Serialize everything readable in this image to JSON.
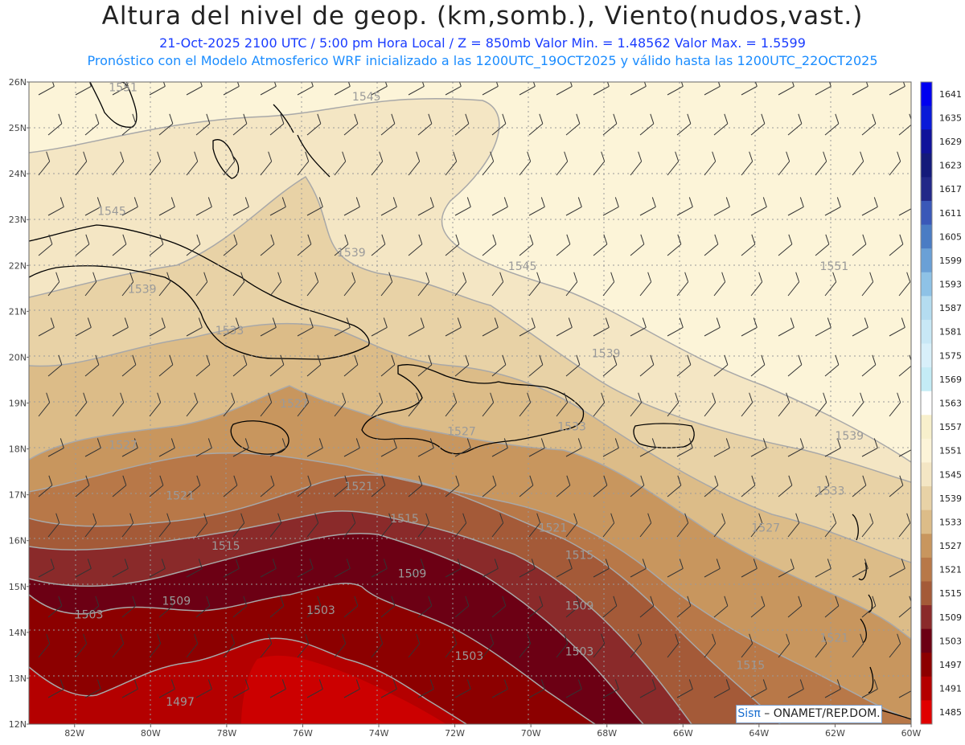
{
  "title": "Altura del nivel de geop. (km,somb.), Viento(nudos,vast.)",
  "subtitle": "21-Oct-2025  2100 UTC / 5:00 pm Hora Local / Z = 850mb      Valor Min. = 1.48562   Valor Max. = 1.5599",
  "model_line": "Pronóstico con el Modelo Atmosferico WRF inicializado a las 1200UTC_19OCT2025 y válido hasta las  1200UTC_22OCT2025",
  "credit": {
    "brand": "Sisπ",
    "rest": " – ONAMET/REP.DOM."
  },
  "axes": {
    "lat_labels": [
      "26N",
      "25N",
      "24N",
      "23N",
      "22N",
      "21N",
      "20N",
      "19N",
      "18N",
      "17N",
      "16N",
      "15N",
      "14N",
      "13N",
      "12N"
    ],
    "lon_labels": [
      "82W",
      "80W",
      "78W",
      "76W",
      "74W",
      "72W",
      "70W",
      "68W",
      "66W",
      "64W",
      "62W",
      "60W"
    ]
  },
  "colorbar": {
    "values": [
      "1641",
      "1635",
      "1629",
      "1623",
      "1617",
      "1611",
      "1605",
      "1599",
      "1593",
      "1587",
      "1581",
      "1575",
      "1569",
      "1563",
      "1557",
      "1551",
      "1545",
      "1539",
      "1533",
      "1527",
      "1521",
      "1515",
      "1509",
      "1503",
      "1497",
      "1491",
      "1485"
    ],
    "colors": [
      "#0000f0",
      "#0a1ad8",
      "#10129a",
      "#141a7a",
      "#222888",
      "#3a58b8",
      "#4a7cc4",
      "#6aa0d6",
      "#8ec2e6",
      "#b4dcf0",
      "#c8e8f6",
      "#d8f0fa",
      "#c4ecf6",
      "#ffffff",
      "#f8f0cc",
      "#fcf4d8",
      "#f4e6c4",
      "#e8d2a6",
      "#dcbc88",
      "#c8965e",
      "#b87848",
      "#a45a38",
      "#8a2a2a",
      "#6c0014",
      "#8c0000",
      "#b40000",
      "#e00000"
    ]
  },
  "contour_labels": [
    {
      "text": "1551",
      "lon": -81.1,
      "lat": 25.8
    },
    {
      "text": "1545",
      "lon": -74.7,
      "lat": 25.6
    },
    {
      "text": "1545",
      "lon": -81.4,
      "lat": 23.1
    },
    {
      "text": "1539",
      "lon": -75.1,
      "lat": 22.2
    },
    {
      "text": "1545",
      "lon": -70.6,
      "lat": 21.9
    },
    {
      "text": "1551",
      "lon": -62.4,
      "lat": 21.9
    },
    {
      "text": "1539",
      "lon": -80.6,
      "lat": 21.4
    },
    {
      "text": "1533",
      "lon": -78.3,
      "lat": 20.5
    },
    {
      "text": "1539",
      "lon": -68.4,
      "lat": 20.0
    },
    {
      "text": "1527",
      "lon": -76.6,
      "lat": 18.9
    },
    {
      "text": "1533",
      "lon": -69.3,
      "lat": 18.4
    },
    {
      "text": "1527",
      "lon": -72.2,
      "lat": 18.3
    },
    {
      "text": "1539",
      "lon": -62.0,
      "lat": 18.2
    },
    {
      "text": "1527",
      "lon": -81.1,
      "lat": 18.0
    },
    {
      "text": "1521",
      "lon": -74.9,
      "lat": 17.1
    },
    {
      "text": "1533",
      "lon": -62.5,
      "lat": 17.0
    },
    {
      "text": "1521",
      "lon": -79.6,
      "lat": 16.9
    },
    {
      "text": "1515",
      "lon": -73.7,
      "lat": 16.4
    },
    {
      "text": "1521",
      "lon": -69.8,
      "lat": 16.2
    },
    {
      "text": "1527",
      "lon": -64.2,
      "lat": 16.2
    },
    {
      "text": "1515",
      "lon": -78.4,
      "lat": 15.8
    },
    {
      "text": "1515",
      "lon": -69.1,
      "lat": 15.6
    },
    {
      "text": "1509",
      "lon": -73.5,
      "lat": 15.2
    },
    {
      "text": "1509",
      "lon": -79.7,
      "lat": 14.6
    },
    {
      "text": "1509",
      "lon": -69.1,
      "lat": 14.5
    },
    {
      "text": "1503",
      "lon": -82.0,
      "lat": 14.3
    },
    {
      "text": "1503",
      "lon": -75.9,
      "lat": 14.4
    },
    {
      "text": "1503",
      "lon": -72.0,
      "lat": 13.4
    },
    {
      "text": "1503",
      "lon": -69.1,
      "lat": 13.5
    },
    {
      "text": "1521",
      "lon": -62.4,
      "lat": 13.8
    },
    {
      "text": "1515",
      "lon": -64.6,
      "lat": 13.2
    },
    {
      "text": "1497",
      "lon": -79.6,
      "lat": 12.4
    }
  ]
}
